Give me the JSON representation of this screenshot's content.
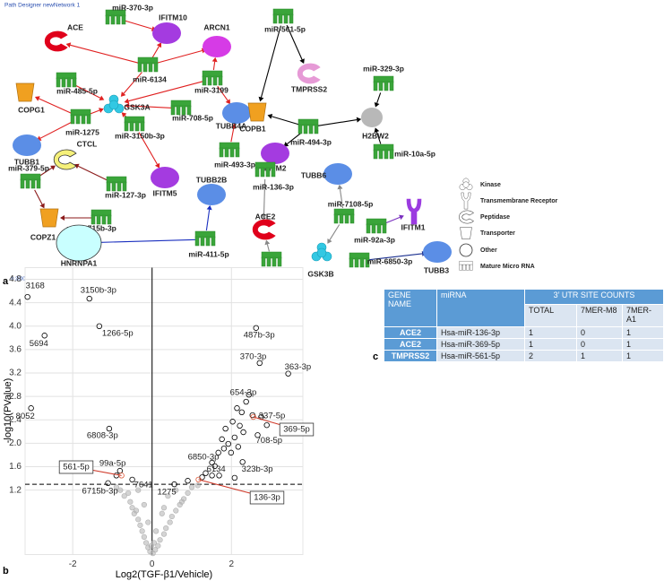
{
  "network": {
    "title": "Path Designer newNetwork 1",
    "copyright": "© 2000-2023 QIAGEN. All rights reserved.",
    "nodes": [
      "ACE",
      "miR-370-3p",
      "IFITM10",
      "ARCN1",
      "miR-6134",
      "miR-3199",
      "miR-485-5p",
      "GSK3A",
      "COPG1",
      "miR-1275",
      "TUBB1",
      "miR-3150b-3p",
      "miR-708-5p",
      "TUBB4A",
      "miR-493-3p",
      "IFITM5",
      "CTCL",
      "miR-379-5p",
      "miR-127-3p",
      "COPZ1",
      "miR-6715b-3p",
      "TUBB2B",
      "HNRNPA1",
      "miR-411-5p",
      "miR-561-5p",
      "TMPRSS2",
      "miR-329-3p",
      "COPB1",
      "H2BW2",
      "miR-494-3p",
      "IFITM2",
      "miR-10a-5p",
      "TUBB6",
      "miR-136-3p",
      "ACE2",
      "miR-7108-5p",
      "IFITM1",
      "miR-369-5p",
      "GSK3B",
      "miR-92a-3p",
      "miR-6850-3p",
      "TUBB3"
    ],
    "legend": [
      "Kinase",
      "Transmembrane Receptor",
      "Peptidase",
      "Transporter",
      "Other",
      "Mature Micro RNA"
    ]
  },
  "panels": [
    "a",
    "b",
    "c"
  ],
  "chart_data": {
    "type": "scatter",
    "xlabel": "Log2(TGF-β1/Vehicle)",
    "ylabel": "-log10(PValue)",
    "xlim": [
      -3.2,
      3.8
    ],
    "ylim": [
      0.1,
      5
    ],
    "xticks": [
      -2,
      0,
      2
    ],
    "yticks": [
      {
        "value": 1.2,
        "label": "1.2"
      },
      {
        "value": 1.6,
        "label": "1.6"
      },
      {
        "value": 2,
        "label": "2.0"
      },
      {
        "value": 2.4,
        "label": "2.4"
      },
      {
        "value": 2.8,
        "label": "2.8"
      },
      {
        "value": 3.2,
        "label": "3.2"
      },
      {
        "value": 3.6,
        "label": "3.6"
      },
      {
        "value": 4,
        "label": "4.0"
      },
      {
        "value": 4.4,
        "label": "4.4"
      },
      {
        "value": 4.8,
        "label": "4.8"
      }
    ],
    "grid": true,
    "hline": 1.3,
    "vline": 0,
    "series": [
      {
        "color": "#000000",
        "labels": [
          "3168",
          "3150b-3p",
          "5694",
          "1266-5p",
          "8052",
          "6808-3p",
          "99a-5p",
          "6715b-3p",
          "7641",
          "1275",
          "487b-3p",
          "370-3p",
          "363-3p",
          "654-3p",
          "337-5p",
          "708-5p",
          "6850-3p",
          "6134",
          "323b-3p"
        ],
        "x": [
          -3.14,
          -1.58,
          -2.71,
          -1.33,
          -3.05,
          -1.08,
          -0.81,
          -1.11,
          -0.5,
          0.56,
          2.62,
          2.71,
          3.43,
          2.37,
          2.53,
          2.66,
          1.51,
          1.51,
          2.28
        ],
        "values": [
          4.5,
          4.47,
          3.84,
          4.0,
          2.6,
          2.25,
          1.53,
          1.32,
          1.38,
          1.3,
          3.97,
          3.37,
          3.19,
          2.71,
          2.48,
          2.14,
          1.67,
          1.45,
          1.68
        ]
      },
      {
        "color": "#e05a3a",
        "labels": [
          "561-5p",
          "369-5p",
          "136-3p"
        ],
        "x": [
          -0.77,
          2.55,
          1.17
        ],
        "values": [
          1.45,
          2.45,
          1.38
        ]
      },
      {
        "color": "#000000",
        "x": [
          2.14,
          2.26,
          2.03,
          2.21,
          2.3,
          2.08,
          1.92,
          1.81,
          1.67,
          1.99,
          2.17,
          2.44,
          1.85,
          1.76,
          1.58,
          1.35,
          1.26,
          0.9,
          1.69,
          2.08,
          2.75,
          2.89,
          -0.9
        ],
        "values": [
          2.6,
          2.53,
          2.37,
          2.3,
          2.19,
          2.1,
          1.99,
          1.91,
          1.84,
          1.84,
          1.94,
          2.83,
          2.25,
          2.07,
          1.61,
          1.49,
          1.42,
          1.36,
          1.45,
          1.41,
          2.45,
          2.31,
          1.45
        ]
      },
      {
        "color": "#b0b0b0",
        "x": [
          0.02,
          -0.05,
          0.08,
          -0.1,
          0.15,
          -0.15,
          0.2,
          -0.2,
          0.3,
          -0.25,
          0.35,
          -0.3,
          0.45,
          -0.35,
          0.5,
          -0.45,
          0.6,
          -0.5,
          0.7,
          -0.55,
          0.8,
          -0.7,
          0.9,
          -0.8,
          1.0,
          0.1,
          -0.1,
          0.25,
          -0.2,
          0.4,
          -0.35,
          0.6,
          -0.6,
          0.75,
          -0.4,
          0.3,
          0.05,
          -0.02,
          1.15,
          -0.9
        ],
        "values": [
          0.12,
          0.15,
          0.18,
          0.22,
          0.25,
          0.3,
          0.35,
          0.4,
          0.45,
          0.5,
          0.55,
          0.6,
          0.65,
          0.7,
          0.75,
          0.8,
          0.85,
          0.9,
          0.95,
          1.0,
          1.05,
          1.1,
          1.15,
          1.2,
          1.25,
          0.5,
          0.65,
          0.8,
          0.95,
          1.1,
          1.2,
          1.2,
          1.15,
          1.0,
          0.85,
          0.9,
          0.3,
          0.25,
          1.28,
          1.25
        ]
      }
    ]
  },
  "table": {
    "header": [
      "GENE NAME",
      "miRNA",
      "3’ UTR SITE COUNTS"
    ],
    "subheader": [
      "TOTAL",
      "7MER-M8",
      "7MER-A1"
    ],
    "rows": [
      [
        "ACE2",
        "Hsa-miR-136-3p",
        "1",
        "0",
        "1"
      ],
      [
        "ACE2",
        "Hsa-miR-369-5p",
        "1",
        "0",
        "1"
      ],
      [
        "TMPRSS2",
        "Hsa-miR-561-5p",
        "2",
        "1",
        "1"
      ]
    ]
  }
}
